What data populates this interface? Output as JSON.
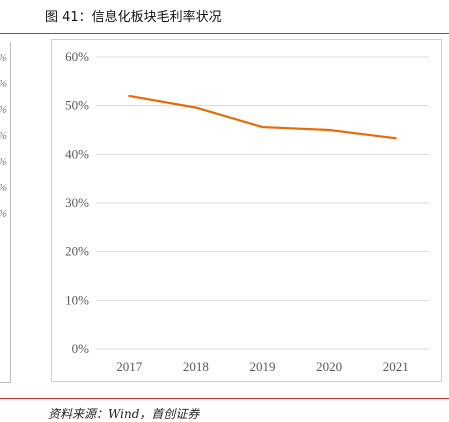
{
  "figure": {
    "title": "图 41：信息化板块毛利率状况",
    "source": "资料来源：Wind，首创证券"
  },
  "neighbor_panel": {
    "glyphs": [
      "%",
      "%",
      "%",
      "%",
      "%",
      "%",
      "%"
    ]
  },
  "colors": {
    "rule": "#c0392b",
    "line": "#e46c0a",
    "grid": "#d9d9d9",
    "tick_text": "#595959"
  },
  "chart_data": {
    "type": "line",
    "categories": [
      "2017",
      "2018",
      "2019",
      "2020",
      "2021"
    ],
    "series": [
      {
        "values": [
          52.0,
          49.6,
          45.6,
          45.0,
          43.3
        ]
      }
    ],
    "yticks": [
      "0%",
      "10%",
      "20%",
      "30%",
      "40%",
      "50%",
      "60%"
    ],
    "ylim": [
      0,
      60
    ],
    "grid": true,
    "legend": "none",
    "title": "",
    "xlabel": "",
    "ylabel": ""
  }
}
